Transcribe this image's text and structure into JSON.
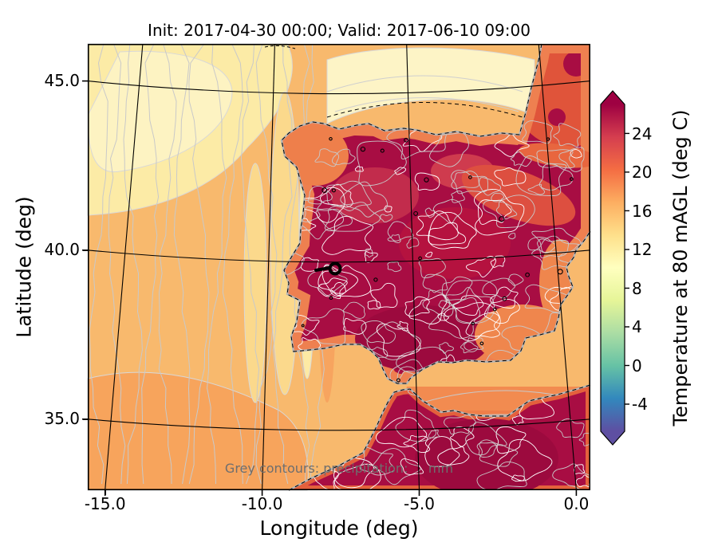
{
  "title": "Init: 2017-04-30 00:00; Valid: 2017-06-10 09:00",
  "axes": {
    "xlabel": "Longitude (deg)",
    "ylabel": "Latitude (deg)",
    "xticks": [
      "-15.0",
      "-10.0",
      "-5.0",
      "0.0"
    ],
    "yticks": [
      "45.0",
      "40.0",
      "35.0"
    ]
  },
  "colorbar": {
    "label": "Temperature at 80 mAGL (deg C)",
    "ticks": [
      "24",
      "20",
      "16",
      "12",
      "8",
      "4",
      "0",
      "-4"
    ]
  },
  "annotation": "Grey contours: precipitation:     mm",
  "palette": {
    "ocean_base": "#f8b96d",
    "ocean_pale": "#fdf3c2",
    "ocean_pale2": "#fceba6",
    "ocean_stripe": "#fbd98c",
    "ocean_deep": "#f7a45c",
    "mediterranean": "#f28b50",
    "land_hot": "#a80d43",
    "land_dark": "#9c0a3e",
    "land_red": "#c22c4c",
    "land_redorange": "#dd4f40",
    "land_orange": "#ee7f4b",
    "france_red": "#e0543a",
    "coast_grey": "#b5b5b5",
    "contour_grey": "#c9c9c9",
    "colorbar_stops": [
      "#5e4fa2",
      "#3288bd",
      "#66c2a5",
      "#abdda4",
      "#e6f598",
      "#ffffbf",
      "#fee08b",
      "#fdae61",
      "#f46d43",
      "#d53e4f",
      "#9e0142"
    ]
  },
  "chart_data": {
    "type": "heatmap",
    "title": "Init: 2017-04-30 00:00; Valid: 2017-06-10 09:00",
    "init_time": "2017-04-30 00:00",
    "valid_time": "2017-06-10 09:00",
    "field": "Temperature at 80 mAGL (deg C)",
    "xlabel": "Longitude (deg)",
    "ylabel": "Latitude (deg)",
    "xlim": [
      -15.5,
      0.5
    ],
    "ylim": [
      32.7,
      46.1
    ],
    "xticks": [
      -15.0,
      -10.0,
      -5.0,
      0.0
    ],
    "yticks": [
      35.0,
      40.0,
      45.0
    ],
    "grid": "black curved graticule (conic map projection)",
    "colorbar": {
      "label": "Temperature at 80 mAGL (deg C)",
      "ticks": [
        -4,
        0,
        4,
        8,
        12,
        16,
        20,
        24
      ],
      "range_est": [
        -7,
        27
      ],
      "extend": "both",
      "position": "right"
    },
    "regions_estimated_temp_c": [
      {
        "region": "Atlantic Ocean west of Iberia",
        "temp_c": 14
      },
      {
        "region": "Coastal upwelling bands off Portugal",
        "temp_c": 12
      },
      {
        "region": "Bay of Biscay",
        "temp_c": 11
      },
      {
        "region": "NW/N Iberian coast (Galicia, Cantabrian coast)",
        "temp_c": 19
      },
      {
        "region": "Iberian interior (central Spain / Portugal)",
        "temp_c": 26
      },
      {
        "region": "Ebro valley / NE Spain",
        "temp_c": 22
      },
      {
        "region": "SE Spain coast (Murcia / Almeria)",
        "temp_c": 18
      },
      {
        "region": "Mediterranean Sea",
        "temp_c": 17
      },
      {
        "region": "North Africa (Morocco / Algeria)",
        "temp_c": 26
      },
      {
        "region": "SW France",
        "temp_c": 22
      }
    ],
    "overlays": [
      {
        "name": "precipitation-contours",
        "style": "dense thin grey/white contour lines, densest over land"
      },
      {
        "name": "coastline",
        "style": "grey solid line with black dashed segments"
      },
      {
        "name": "station-marker",
        "style": "black open circle with short black segment",
        "lon": -7.8,
        "lat": 39.4
      }
    ]
  }
}
